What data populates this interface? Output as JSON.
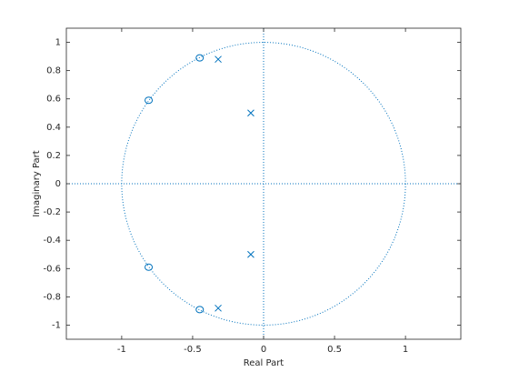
{
  "chart_data": {
    "type": "scatter",
    "xlabel": "Real Part",
    "ylabel": "Imaginary Part",
    "xlim": [
      -1.39,
      1.39
    ],
    "ylim": [
      -1.1,
      1.1
    ],
    "xticks": [
      -1,
      -0.5,
      0,
      0.5,
      1
    ],
    "yticks": [
      -1,
      -0.8,
      -0.6,
      -0.4,
      -0.2,
      0,
      0.2,
      0.4,
      0.6,
      0.8,
      1
    ],
    "unit_circle": true,
    "series": [
      {
        "marker": "o",
        "color": "#0072bd",
        "x": [
          -0.45,
          -0.81,
          -0.81,
          -0.45
        ],
        "y": [
          0.89,
          0.59,
          -0.59,
          -0.89
        ]
      },
      {
        "marker": "x",
        "color": "#0072bd",
        "x": [
          -0.32,
          -0.09,
          -0.09,
          -0.32
        ],
        "y": [
          0.88,
          0.5,
          -0.5,
          -0.88
        ]
      }
    ]
  }
}
